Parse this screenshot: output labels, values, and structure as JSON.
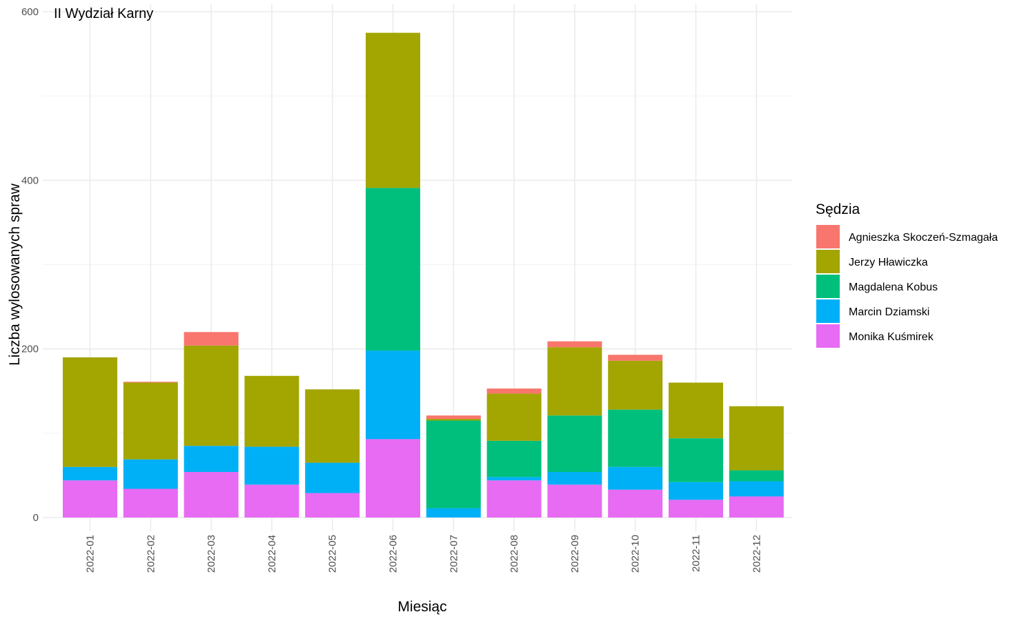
{
  "chart_data": {
    "type": "bar",
    "stacked": true,
    "title": "II Wydział Karny",
    "xlabel": "Miesiąc",
    "ylabel": "Liczba wylosowanych spraw",
    "ylim": [
      0,
      600
    ],
    "yticks": [
      0,
      200,
      400,
      600
    ],
    "grid": true,
    "legend_title": "Sędzia",
    "legend_position": "right",
    "categories": [
      "2022-01",
      "2022-02",
      "2022-03",
      "2022-04",
      "2022-05",
      "2022-06",
      "2022-07",
      "2022-08",
      "2022-09",
      "2022-10",
      "2022-11",
      "2022-12"
    ],
    "series": [
      {
        "name": "Agnieszka Skoczeń-Szmagała",
        "color": "#F8766D",
        "values": [
          0,
          1,
          16,
          0,
          0,
          0,
          4,
          6,
          7,
          7,
          0,
          0
        ]
      },
      {
        "name": "Jerzy Hławiczka",
        "color": "#A3A500",
        "values": [
          130,
          91,
          119,
          84,
          87,
          184,
          2,
          56,
          81,
          58,
          66,
          76
        ]
      },
      {
        "name": "Magdalena Kobus",
        "color": "#00BF7D",
        "values": [
          0,
          0,
          0,
          0,
          0,
          193,
          104,
          43,
          67,
          68,
          52,
          13
        ]
      },
      {
        "name": "Marcin Dziamski",
        "color": "#00B0F6",
        "values": [
          16,
          35,
          31,
          45,
          36,
          105,
          11,
          4,
          15,
          27,
          21,
          18
        ]
      },
      {
        "name": "Monika Kuśmirek",
        "color": "#E76BF3",
        "values": [
          44,
          34,
          54,
          39,
          29,
          93,
          0,
          44,
          39,
          33,
          21,
          25
        ]
      }
    ]
  }
}
